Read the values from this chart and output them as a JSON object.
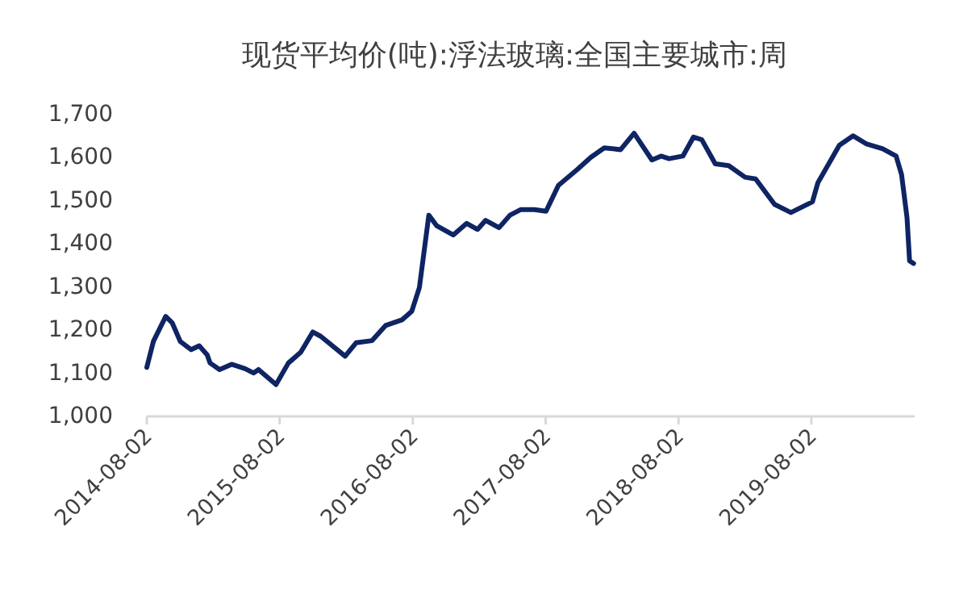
{
  "chart_data": {
    "type": "line",
    "title": "现货平均价(吨):浮法玻璃:全国主要城市:周",
    "x": [
      "2014-08-02",
      "2014-08-20",
      "2014-09-23",
      "2014-10-11",
      "2014-11-02",
      "2014-12-02",
      "2014-12-24",
      "2015-01-15",
      "2015-01-23",
      "2015-02-18",
      "2015-03-23",
      "2015-04-29",
      "2015-05-22",
      "2015-06-05",
      "2015-07-23",
      "2015-08-26",
      "2015-09-29",
      "2015-11-01",
      "2015-11-23",
      "2016-01-29",
      "2016-02-28",
      "2016-04-12",
      "2016-05-19",
      "2016-07-03",
      "2016-07-30",
      "2016-08-20",
      "2016-09-15",
      "2016-10-07",
      "2016-11-21",
      "2016-12-28",
      "2017-01-27",
      "2017-02-18",
      "2017-03-27",
      "2017-04-26",
      "2017-05-26",
      "2017-07-02",
      "2017-08-03",
      "2017-09-06",
      "2017-10-28",
      "2017-12-04",
      "2018-01-10",
      "2018-02-24",
      "2018-04-02",
      "2018-05-21",
      "2018-06-15",
      "2018-07-07",
      "2018-08-14",
      "2018-09-12",
      "2018-10-05",
      "2018-11-11",
      "2018-12-18",
      "2019-02-01",
      "2019-03-02",
      "2019-04-23",
      "2019-06-07",
      "2019-08-05",
      "2019-08-20",
      "2019-10-18",
      "2019-11-25",
      "2020-01-01",
      "2020-02-14",
      "2020-03-22",
      "2020-04-06",
      "2020-04-21",
      "2020-04-28",
      "2020-05-09"
    ],
    "series": [
      {
        "color": "#0f2463",
        "values": [
          1110,
          1170,
          1228,
          1213,
          1170,
          1151,
          1160,
          1139,
          1120,
          1105,
          1117,
          1107,
          1097,
          1105,
          1070,
          1120,
          1145,
          1192,
          1182,
          1136,
          1167,
          1172,
          1207,
          1220,
          1240,
          1295,
          1463,
          1438,
          1417,
          1444,
          1430,
          1451,
          1434,
          1463,
          1476,
          1476,
          1472,
          1532,
          1569,
          1597,
          1619,
          1615,
          1653,
          1591,
          1600,
          1594,
          1600,
          1644,
          1638,
          1582,
          1578,
          1551,
          1547,
          1488,
          1469,
          1494,
          1538,
          1625,
          1647,
          1628,
          1617,
          1600,
          1557,
          1457,
          1357,
          1351
        ]
      }
    ],
    "xlim": [
      "2014-08-02",
      "2020-05-12"
    ],
    "xticks": [
      "2014-08-02",
      "2015-08-02",
      "2016-08-02",
      "2017-08-02",
      "2018-08-02",
      "2019-08-02"
    ],
    "ylim": [
      1000,
      1700
    ],
    "yticks": [
      {
        "value": 1000,
        "label": "1,000"
      },
      {
        "value": 1100,
        "label": "1,100"
      },
      {
        "value": 1200,
        "label": "1,200"
      },
      {
        "value": 1300,
        "label": "1,300"
      },
      {
        "value": 1400,
        "label": "1,400"
      },
      {
        "value": 1500,
        "label": "1,500"
      },
      {
        "value": 1600,
        "label": "1,600"
      },
      {
        "value": 1700,
        "label": "1,700"
      }
    ],
    "grid": false
  }
}
